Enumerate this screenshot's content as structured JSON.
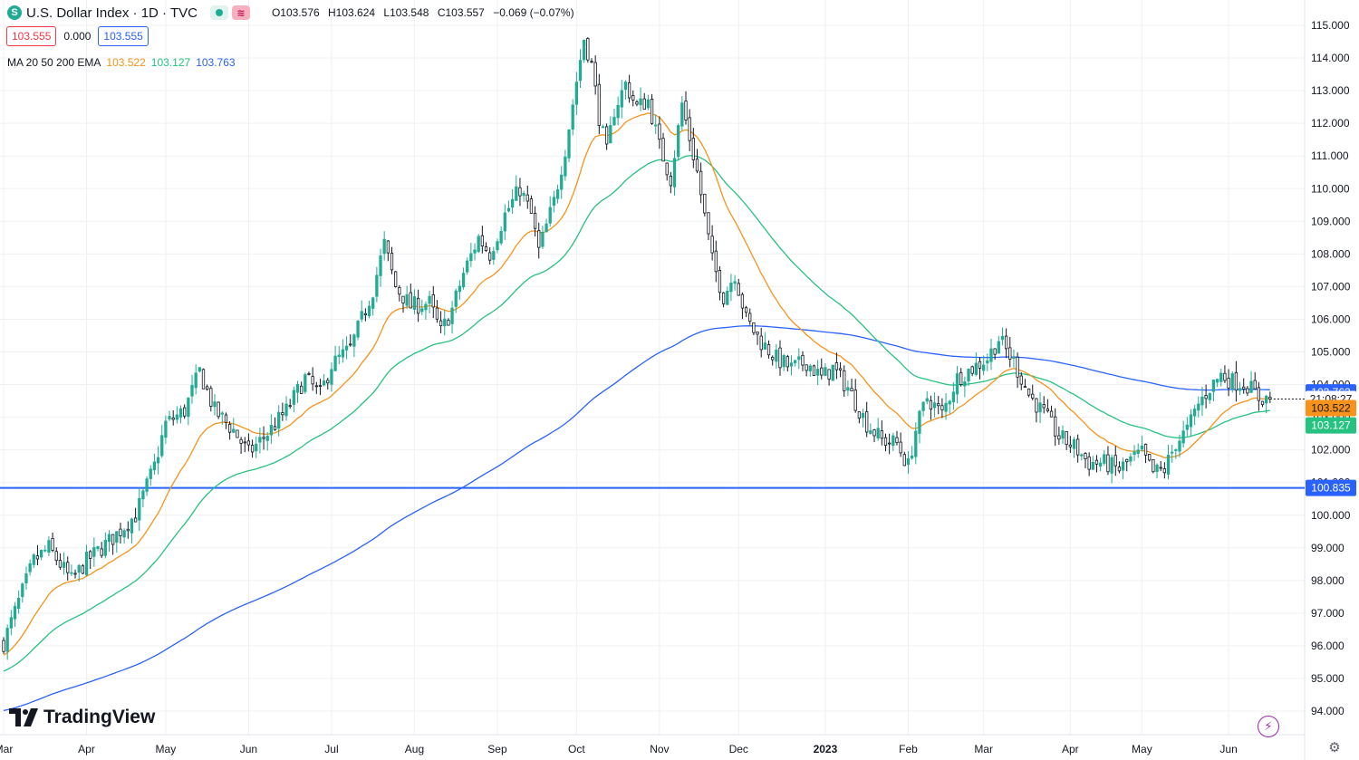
{
  "header": {
    "symbol_icon": "S",
    "title": "U.S. Dollar Index · 1D · TVC",
    "ohlc": {
      "open": "O103.576",
      "high": "H103.624",
      "low": "L103.548",
      "close": "C103.557",
      "change": "−0.069 (−0.07%)"
    },
    "sell_price": "103.555",
    "spread": "0.000",
    "buy_price": "103.555"
  },
  "indicator": {
    "label": "MA 20 50 200 EMA",
    "ma20": "103.522",
    "ma50": "103.127",
    "ma200": "103.763"
  },
  "colors": {
    "up": "#22ab94",
    "down": "#131722",
    "ma20": "#f7931a",
    "ma50": "#26c281",
    "ma200": "#2962ff",
    "hline": "#2962ff",
    "grid": "#eef0f3"
  },
  "branding": {
    "logo_text": "TradingView"
  },
  "chart_data": {
    "type": "candlestick",
    "title": "U.S. Dollar Index · 1D · TVC",
    "ylim": [
      93.8,
      115.2
    ],
    "y_ticks": [
      94,
      95,
      96,
      97,
      98,
      99,
      100,
      101,
      102,
      103,
      104,
      105,
      106,
      107,
      108,
      109,
      110,
      111,
      112,
      113,
      114,
      115
    ],
    "y_tick_labels": [
      "94.000",
      "95.000",
      "96.000",
      "97.000",
      "98.000",
      "99.000",
      "100.000",
      "101.000",
      "102.000",
      "103.000",
      "104.000",
      "105.000",
      "106.000",
      "107.000",
      "108.000",
      "109.000",
      "110.000",
      "111.000",
      "112.000",
      "113.000",
      "114.000",
      "115.000"
    ],
    "x_labels": [
      "Mar",
      "Apr",
      "May",
      "Jun",
      "Jul",
      "Aug",
      "Sep",
      "Oct",
      "Nov",
      "Dec",
      "2023",
      "Feb",
      "Mar",
      "Apr",
      "May",
      "Jun"
    ],
    "x_label_bold": [
      false,
      false,
      false,
      false,
      false,
      false,
      false,
      false,
      false,
      false,
      true,
      false,
      false,
      false,
      false,
      false
    ],
    "x_label_day": [
      0,
      22,
      43,
      65,
      87,
      109,
      131,
      152,
      174,
      195,
      218,
      240,
      260,
      283,
      302,
      325
    ],
    "anchors": [
      [
        0,
        96.1
      ],
      [
        8,
        98.6
      ],
      [
        12,
        99.0
      ],
      [
        18,
        98.0
      ],
      [
        22,
        98.6
      ],
      [
        28,
        99.2
      ],
      [
        35,
        100.0
      ],
      [
        40,
        101.5
      ],
      [
        43,
        102.8
      ],
      [
        48,
        103.2
      ],
      [
        52,
        104.4
      ],
      [
        56,
        103.2
      ],
      [
        61,
        102.6
      ],
      [
        65,
        101.9
      ],
      [
        70,
        102.5
      ],
      [
        75,
        103.2
      ],
      [
        80,
        104.2
      ],
      [
        84,
        103.7
      ],
      [
        87,
        104.6
      ],
      [
        92,
        105.1
      ],
      [
        95,
        106.0
      ],
      [
        98,
        106.9
      ],
      [
        101,
        108.3
      ],
      [
        104,
        107.0
      ],
      [
        108,
        106.4
      ],
      [
        113,
        106.5
      ],
      [
        116,
        105.6
      ],
      [
        119,
        106.3
      ],
      [
        122,
        107.4
      ],
      [
        126,
        108.5
      ],
      [
        129,
        108.0
      ],
      [
        133,
        109.2
      ],
      [
        137,
        110.0
      ],
      [
        140,
        109.2
      ],
      [
        142,
        108.1
      ],
      [
        146,
        109.6
      ],
      [
        149,
        111.2
      ],
      [
        152,
        113.3
      ],
      [
        154,
        114.6
      ],
      [
        156,
        113.8
      ],
      [
        158,
        112.2
      ],
      [
        160,
        111.1
      ],
      [
        162,
        112.4
      ],
      [
        165,
        113.2
      ],
      [
        168,
        112.5
      ],
      [
        171,
        112.7
      ],
      [
        174,
        111.3
      ],
      [
        177,
        110.3
      ],
      [
        180,
        112.6
      ],
      [
        184,
        110.5
      ],
      [
        188,
        107.8
      ],
      [
        191,
        106.7
      ],
      [
        194,
        107.4
      ],
      [
        197,
        106.0
      ],
      [
        201,
        105.3
      ],
      [
        205,
        104.8
      ],
      [
        209,
        104.5
      ],
      [
        213,
        104.7
      ],
      [
        217,
        104.2
      ],
      [
        220,
        104.5
      ],
      [
        224,
        103.9
      ],
      [
        229,
        102.8
      ],
      [
        233,
        102.3
      ],
      [
        237,
        102.2
      ],
      [
        240,
        101.5
      ],
      [
        242,
        102.6
      ],
      [
        245,
        103.6
      ],
      [
        249,
        103.1
      ],
      [
        253,
        104.2
      ],
      [
        257,
        104.5
      ],
      [
        261,
        104.8
      ],
      [
        264,
        105.4
      ],
      [
        268,
        104.7
      ],
      [
        272,
        103.7
      ],
      [
        276,
        103.1
      ],
      [
        280,
        102.4
      ],
      [
        284,
        102.1
      ],
      [
        288,
        101.6
      ],
      [
        292,
        101.6
      ],
      [
        296,
        101.4
      ],
      [
        299,
        101.7
      ],
      [
        302,
        101.9
      ],
      [
        305,
        101.3
      ],
      [
        308,
        101.4
      ],
      [
        311,
        102.2
      ],
      [
        314,
        102.6
      ],
      [
        317,
        103.4
      ],
      [
        320,
        103.9
      ],
      [
        323,
        104.3
      ],
      [
        326,
        104.1
      ],
      [
        330,
        104.0
      ],
      [
        333,
        103.6
      ],
      [
        336,
        103.56
      ]
    ],
    "hline": 100.835,
    "hline_label": "100.835",
    "last_close": 103.557,
    "price_tags": [
      {
        "label": "103.763",
        "y": 103.763,
        "bg": "#2962ff",
        "fg": "#ffffff"
      },
      {
        "label": "21:08:27",
        "y": 103.557,
        "bg": "#ffffff",
        "fg": "#131722"
      },
      {
        "label": "103.522",
        "y": 103.28,
        "bg": "#f7931a",
        "fg": "#131722"
      },
      {
        "label": "103.127",
        "y": 102.75,
        "bg": "#26c281",
        "fg": "#ffffff"
      }
    ],
    "legend": "top-left"
  }
}
